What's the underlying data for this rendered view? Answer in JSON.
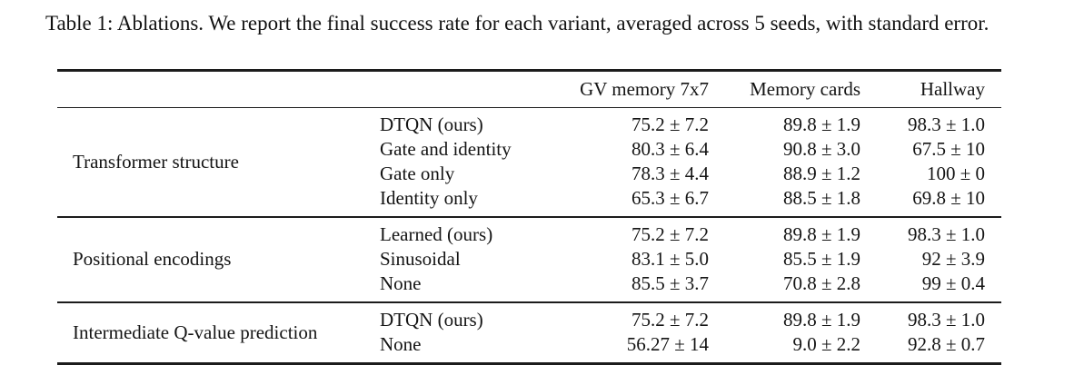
{
  "caption": "Table 1: Ablations. We report the final success rate for each variant, averaged across 5 seeds, with standard error.",
  "table": {
    "column_headers": [
      "GV memory 7x7",
      "Memory cards",
      "Hallway"
    ],
    "groups": [
      {
        "label": "Transformer structure",
        "rows": [
          {
            "variant": "DTQN (ours)",
            "values": [
              "75.2 ± 7.2",
              "89.8 ± 1.9",
              "98.3 ± 1.0"
            ]
          },
          {
            "variant": "Gate and identity",
            "values": [
              "80.3 ± 6.4",
              "90.8 ± 3.0",
              "67.5 ± 10"
            ]
          },
          {
            "variant": "Gate only",
            "values": [
              "78.3 ± 4.4",
              "88.9 ± 1.2",
              "100 ± 0"
            ]
          },
          {
            "variant": "Identity only",
            "values": [
              "65.3 ± 6.7",
              "88.5 ± 1.8",
              "69.8 ± 10"
            ]
          }
        ]
      },
      {
        "label": "Positional encodings",
        "rows": [
          {
            "variant": "Learned (ours)",
            "values": [
              "75.2 ± 7.2",
              "89.8 ± 1.9",
              "98.3 ± 1.0"
            ]
          },
          {
            "variant": "Sinusoidal",
            "values": [
              "83.1 ± 5.0",
              "85.5 ± 1.9",
              "92 ± 3.9"
            ]
          },
          {
            "variant": "None",
            "values": [
              "85.5 ± 3.7",
              "70.8 ± 2.8",
              "99 ± 0.4"
            ]
          }
        ]
      },
      {
        "label": "Intermediate Q-value prediction",
        "rows": [
          {
            "variant": "DTQN (ours)",
            "values": [
              "75.2 ± 7.2",
              "89.8 ± 1.9",
              "98.3 ± 1.0"
            ]
          },
          {
            "variant": "None",
            "values": [
              "56.27 ± 14",
              "9.0 ± 2.2",
              "92.8 ± 0.7"
            ]
          }
        ]
      }
    ]
  }
}
